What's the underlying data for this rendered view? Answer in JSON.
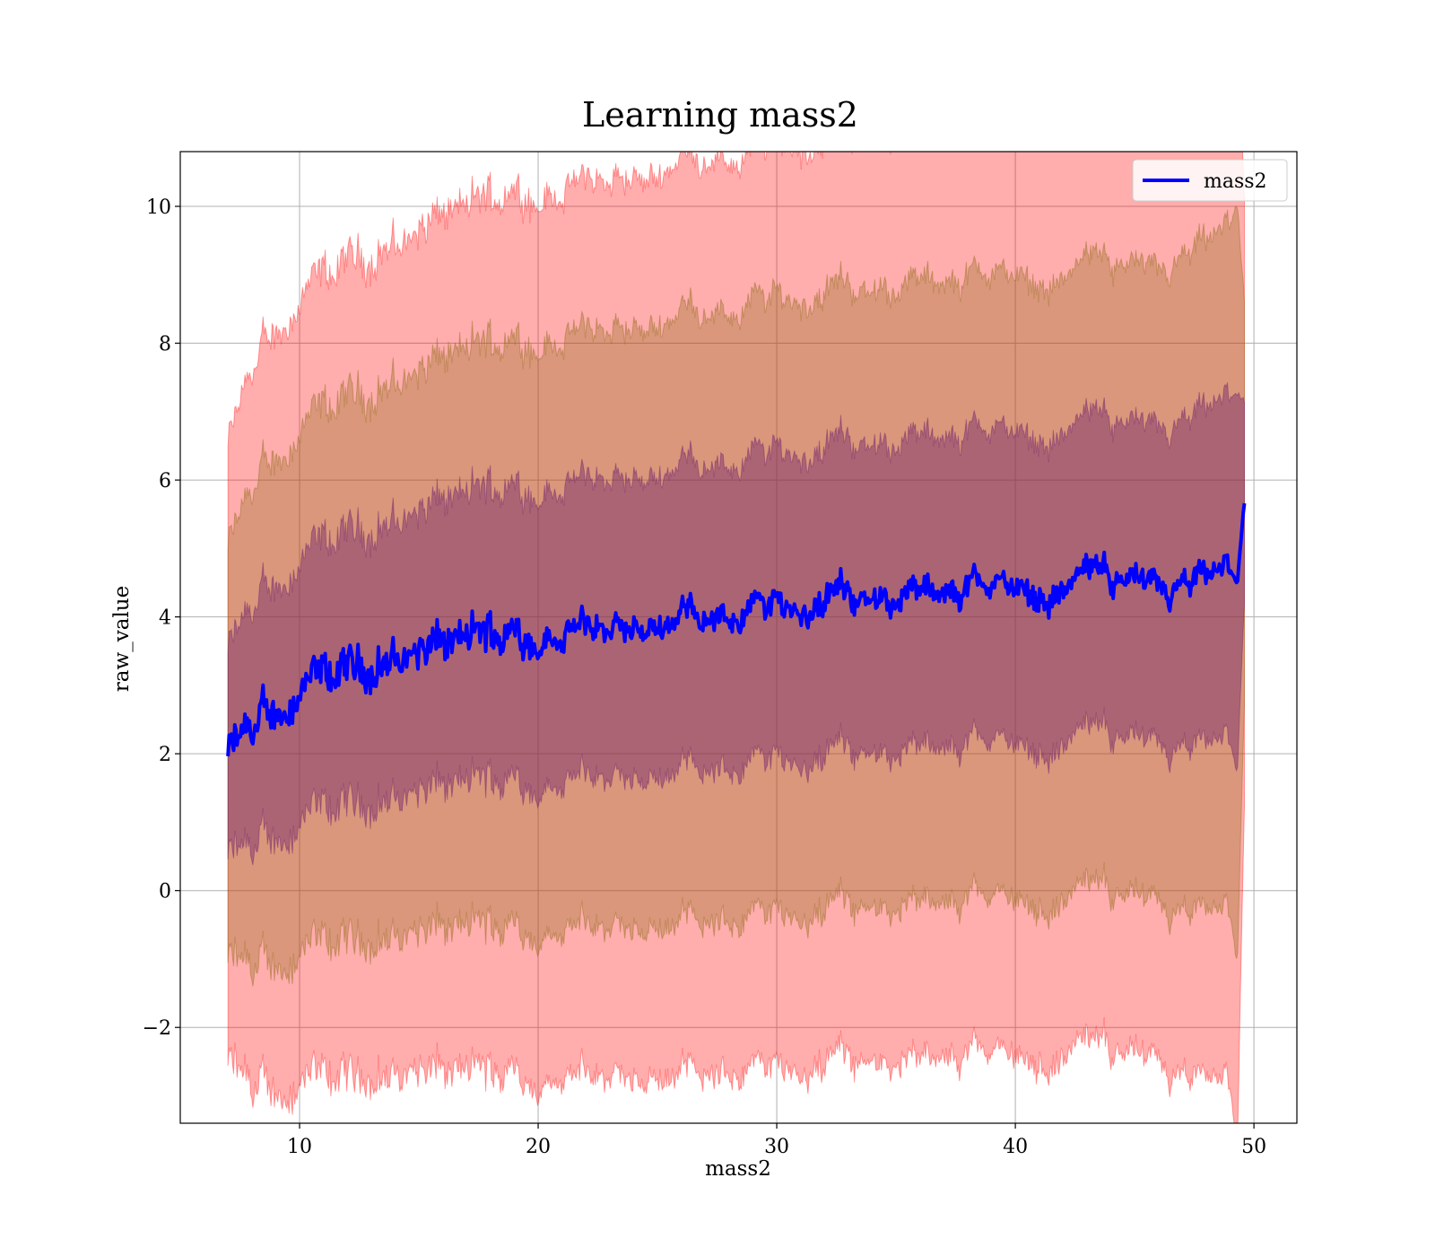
{
  "chart_data": {
    "type": "line",
    "title": "Learning mass2",
    "xlabel": "mass2",
    "ylabel": "raw_value",
    "xlim": [
      5,
      51.8
    ],
    "ylim": [
      -3.4,
      10.8
    ],
    "xticks": [
      10,
      20,
      30,
      40,
      50
    ],
    "xtick_labels": [
      "10",
      "20",
      "30",
      "40",
      "50"
    ],
    "yticks": [
      -2,
      0,
      2,
      4,
      6,
      8,
      10
    ],
    "ytick_labels": [
      "−2",
      "0",
      "2",
      "4",
      "6",
      "8",
      "10"
    ],
    "grid": true,
    "legend": {
      "position": "upper-right",
      "entries": [
        "mass2"
      ]
    },
    "x_range": [
      7.0,
      49.6
    ],
    "colors": {
      "line": "#0000ff",
      "band_3sigma": "#ff0000",
      "band_2sigma": "#8b6914",
      "band_1sigma": "#6b1f6b"
    },
    "anchors": {
      "x": [
        7.0,
        8.0,
        9.0,
        10.0,
        11.0,
        12.0,
        13.0,
        14.0,
        15.0,
        16.0,
        17.0,
        18.0,
        19.0,
        20.0,
        21.0,
        22.0,
        23.0,
        24.0,
        25.0,
        26.0,
        27.0,
        28.0,
        29.0,
        30.0,
        31.0,
        32.0,
        33.0,
        34.0,
        35.0,
        36.0,
        37.0,
        38.0,
        39.0,
        40.0,
        41.0,
        42.0,
        43.0,
        44.0,
        45.0,
        46.0,
        47.0,
        48.0,
        49.0,
        49.3,
        49.6
      ],
      "mean": [
        2.0,
        2.3,
        2.6,
        2.9,
        3.05,
        3.2,
        3.3,
        3.35,
        3.5,
        3.55,
        3.65,
        3.75,
        3.8,
        3.7,
        3.75,
        3.85,
        3.8,
        3.75,
        3.85,
        4.1,
        4.05,
        3.95,
        4.15,
        4.25,
        4.1,
        4.15,
        4.45,
        4.05,
        4.35,
        4.4,
        4.2,
        4.5,
        4.5,
        4.45,
        4.3,
        4.35,
        4.7,
        4.6,
        4.55,
        4.3,
        4.35,
        4.55,
        4.7,
        4.5,
        5.7
      ],
      "sigma": [
        1.5,
        1.75,
        1.85,
        1.9,
        1.95,
        1.98,
        2.0,
        2.02,
        2.05,
        2.08,
        2.1,
        2.12,
        2.15,
        2.15,
        2.16,
        2.18,
        2.18,
        2.2,
        2.2,
        2.22,
        2.22,
        2.22,
        2.24,
        2.25,
        2.25,
        2.25,
        2.25,
        2.26,
        2.26,
        2.27,
        2.27,
        2.27,
        2.27,
        2.28,
        2.28,
        2.28,
        2.28,
        2.3,
        2.3,
        2.32,
        2.4,
        2.45,
        2.5,
        2.8,
        1.45
      ]
    }
  }
}
